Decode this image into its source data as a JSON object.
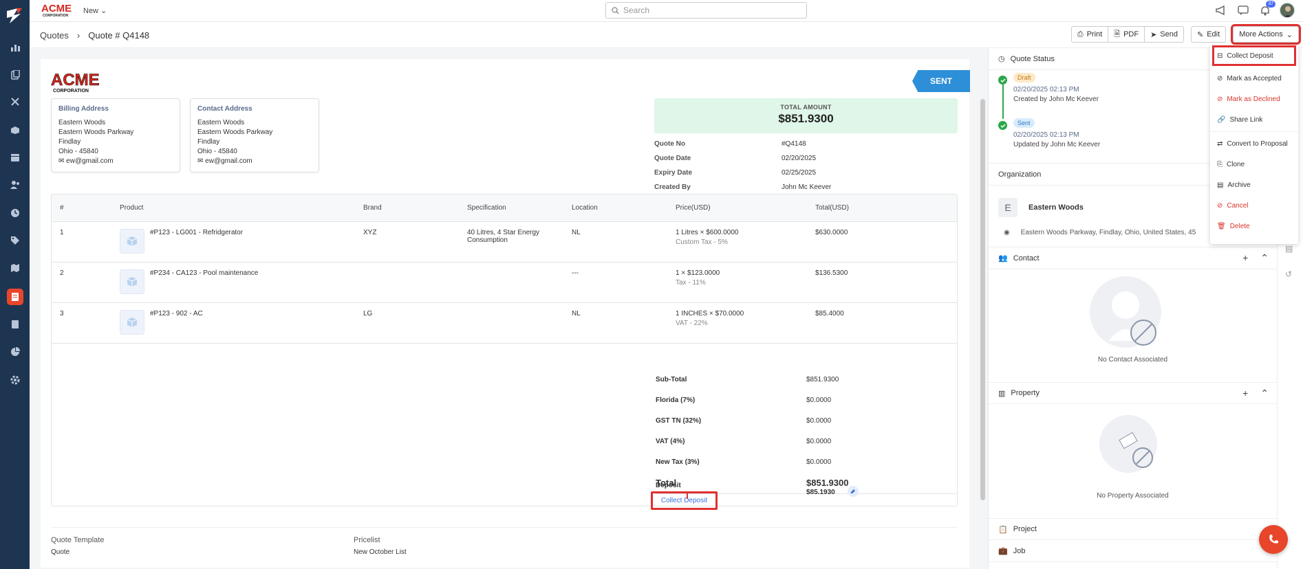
{
  "topbar": {
    "new_label": "New",
    "search_placeholder": "Search",
    "notif_count": "37"
  },
  "breadcrumb": {
    "parent": "Quotes",
    "current": "Quote # Q4148"
  },
  "actions": {
    "print": "Print",
    "pdf": "PDF",
    "send": "Send",
    "edit": "Edit",
    "more": "More Actions"
  },
  "quote": {
    "status_tag": "SENT",
    "logo_text": "ACME",
    "logo_sub": "CORPORATION",
    "billing": {
      "title": "Billing Address",
      "l1": "Eastern Woods",
      "l2": "Eastern Woods Parkway",
      "l3": "Findlay",
      "l4": "Ohio - 45840",
      "email": "ew@gmail.com"
    },
    "contact": {
      "title": "Contact Address",
      "l1": "Eastern Woods",
      "l2": "Eastern Woods Parkway",
      "l3": "Findlay",
      "l4": "Ohio - 45840",
      "email": "ew@gmail.com"
    },
    "total_label": "TOTAL AMOUNT",
    "total_value": "$851.9300",
    "meta": [
      {
        "k": "Quote No",
        "v": "#Q4148"
      },
      {
        "k": "Quote Date",
        "v": "02/20/2025"
      },
      {
        "k": "Expiry Date",
        "v": "02/25/2025"
      },
      {
        "k": "Created By",
        "v": "John Mc Keever"
      }
    ],
    "columns": [
      "#",
      "Product",
      "Brand",
      "Specification",
      "Location",
      "Price(USD)",
      "Total(USD)"
    ],
    "rows": [
      {
        "n": "1",
        "product": "#P123 - LG001 - Refridgerator",
        "brand": "XYZ",
        "spec": "40 Litres, 4 Star Energy Consumption",
        "location": "NL",
        "price": "1 Litres  ×  $600.0000",
        "tax": "Custom Tax - 5%",
        "total": "$630.0000"
      },
      {
        "n": "2",
        "product": "#P234 - CA123 - Pool maintenance",
        "brand": "",
        "spec": "",
        "location": "---",
        "price": "1  ×  $123.0000",
        "tax": "Tax - 11%",
        "total": "$136.5300"
      },
      {
        "n": "3",
        "product": "#P123 - 902 - AC",
        "brand": "LG",
        "spec": "",
        "location": "NL",
        "price": "1 INCHES  ×  $70.0000",
        "tax": "VAT - 22%",
        "total": "$85.4000"
      }
    ],
    "totals": [
      {
        "k": "Sub-Total",
        "v": "$851.9300"
      },
      {
        "k": "Florida (7%)",
        "v": "$0.0000"
      },
      {
        "k": "GST TN (32%)",
        "v": "$0.0000"
      },
      {
        "k": "VAT (4%)",
        "v": "$0.0000"
      },
      {
        "k": "New Tax (3%)",
        "v": "$0.0000"
      }
    ],
    "grand_total": {
      "k": "Total",
      "v": "$851.9300"
    },
    "deposit": {
      "k": "Deposit",
      "link": "Collect Deposit",
      "v": "$85.1930"
    },
    "footer": {
      "template_k": "Quote Template",
      "template_v": "Quote",
      "pricelist_k": "Pricelist",
      "pricelist_v": "New October List"
    }
  },
  "right": {
    "status_title": "Quote Status",
    "timeline": [
      {
        "pill": "Draft",
        "time": "02/20/2025 02:13 PM",
        "by": "Created by John Mc Keever"
      },
      {
        "pill": "Sent",
        "time": "02/20/2025 02:13 PM",
        "by": "Updated by John Mc Keever"
      }
    ],
    "org_title": "Organization",
    "org_initial": "E",
    "org_name": "Eastern Woods",
    "org_addr": "Eastern Woods Parkway, Findlay, Ohio, United States, 45",
    "contact_title": "Contact",
    "contact_empty": "No Contact Associated",
    "property_title": "Property",
    "property_empty": "No Property Associated",
    "project_title": "Project",
    "job_title": "Job"
  },
  "dropdown": [
    "Collect Deposit",
    "Mark as Accepted",
    "Mark as Declined",
    "Share Link",
    "Convert to Proposal",
    "Clone",
    "Archive",
    "Cancel",
    "Delete"
  ]
}
